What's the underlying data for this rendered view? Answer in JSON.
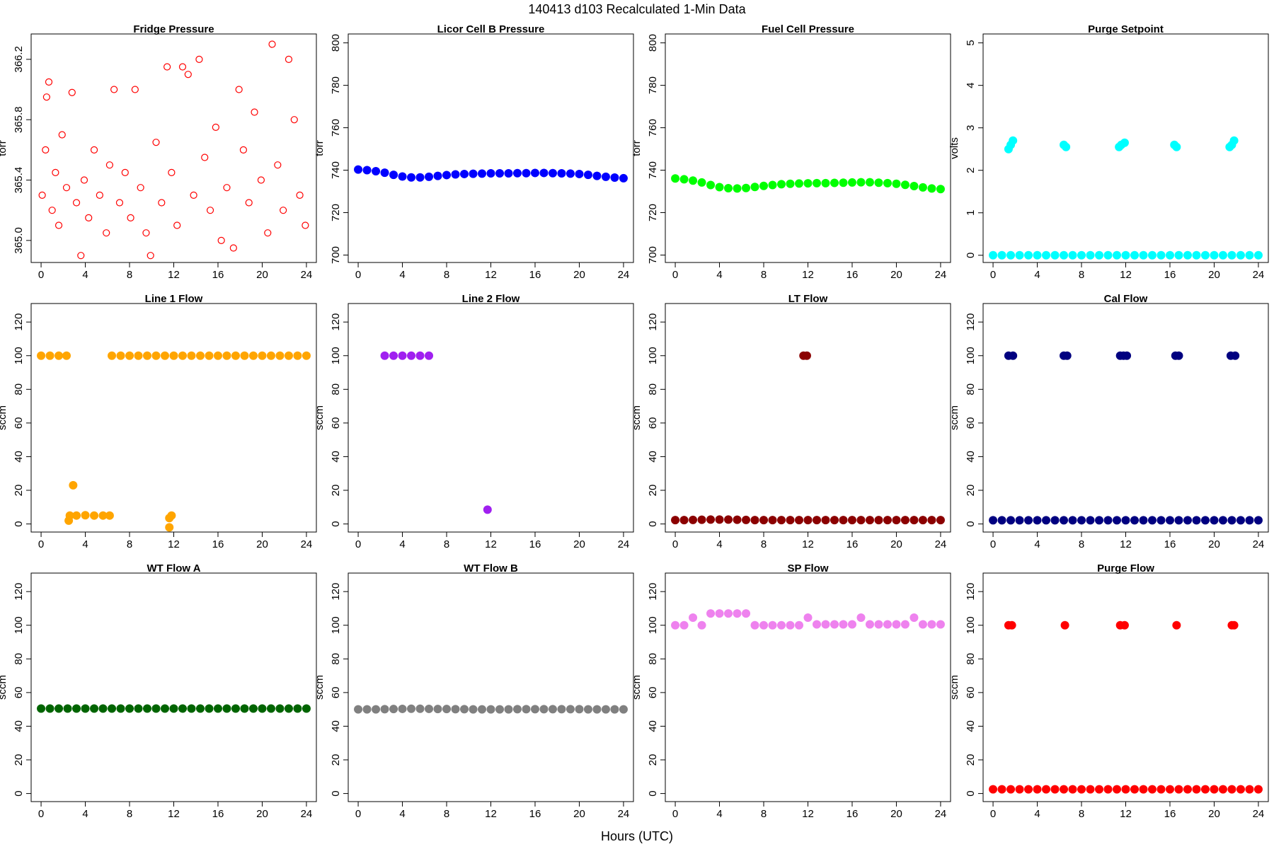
{
  "title": "140413   d103   Recalculated 1-Min Data",
  "xlabel": "Hours (UTC)",
  "chart_data": [
    {
      "type": "scatter",
      "title": "Fridge Pressure",
      "ylabel": "torr",
      "color": "#ff0000",
      "marker": "open",
      "xlim": [
        -0.9,
        24.9
      ],
      "xticks": [
        0,
        4,
        8,
        12,
        16,
        20,
        24
      ],
      "ylim": [
        364.854,
        366.368
      ],
      "yticks": [
        {
          "value": 365,
          "label": "365.0"
        },
        365.4,
        365.8,
        366.2
      ],
      "x": [
        0.1,
        0.4,
        0.5,
        0.7,
        1.0,
        1.3,
        1.6,
        1.9,
        2.3,
        2.8,
        3.2,
        3.6,
        3.9,
        4.3,
        4.8,
        5.3,
        5.9,
        6.2,
        6.6,
        7.1,
        7.6,
        8.1,
        8.5,
        9.0,
        9.5,
        9.9,
        10.4,
        10.9,
        11.4,
        11.8,
        12.3,
        12.8,
        13.3,
        13.8,
        14.3,
        14.8,
        15.3,
        15.8,
        16.3,
        16.8,
        17.4,
        17.9,
        18.3,
        18.8,
        19.3,
        19.9,
        20.5,
        20.9,
        21.4,
        21.9,
        22.4,
        22.9,
        23.4,
        23.9
      ],
      "values": [
        365.3,
        365.6,
        365.95,
        366.05,
        365.2,
        365.45,
        365.1,
        365.7,
        365.35,
        365.98,
        365.25,
        364.9,
        365.4,
        365.15,
        365.6,
        365.3,
        365.05,
        365.5,
        366.0,
        365.25,
        365.45,
        365.15,
        366.0,
        365.35,
        365.05,
        364.9,
        365.65,
        365.25,
        366.15,
        365.45,
        365.1,
        366.15,
        366.1,
        365.3,
        366.2,
        365.55,
        365.2,
        365.75,
        365.0,
        365.35,
        364.95,
        366.0,
        365.6,
        365.25,
        365.85,
        365.4,
        365.05,
        366.3,
        365.5,
        365.2,
        366.2,
        365.8,
        365.3,
        365.1
      ]
    },
    {
      "type": "scatter",
      "title": "Licor Cell B Pressure",
      "ylabel": "torr",
      "color": "#0000ff",
      "marker": "filled",
      "xlim": [
        -0.9,
        24.9
      ],
      "xticks": [
        0,
        4,
        8,
        12,
        16,
        20,
        24
      ],
      "ylim": [
        696.5,
        804.2
      ],
      "yticks": [
        700,
        720,
        740,
        760,
        780,
        800
      ],
      "x": [
        0,
        0.8,
        1.6,
        2.4,
        3.2,
        4,
        4.8,
        5.6,
        6.4,
        7.2,
        8,
        8.8,
        9.6,
        10.4,
        11.2,
        12,
        12.8,
        13.6,
        14.4,
        15.2,
        16,
        16.8,
        17.6,
        18.4,
        19.2,
        20,
        20.8,
        21.6,
        22.4,
        23.2,
        24
      ],
      "values": [
        740.3,
        740,
        739.5,
        738.8,
        737.8,
        737,
        736.6,
        736.6,
        736.9,
        737.3,
        737.7,
        738,
        738.2,
        738.3,
        738.4,
        738.5,
        738.5,
        738.5,
        738.6,
        738.6,
        738.7,
        738.7,
        738.6,
        738.5,
        738.4,
        738.2,
        737.8,
        737.3,
        736.9,
        736.5,
        736.2
      ]
    },
    {
      "type": "scatter",
      "title": "Fuel Cell Pressure",
      "ylabel": "torr",
      "color": "#00ff00",
      "marker": "filled",
      "xlim": [
        -0.9,
        24.9
      ],
      "xticks": [
        0,
        4,
        8,
        12,
        16,
        20,
        24
      ],
      "ylim": [
        696.5,
        804.2
      ],
      "yticks": [
        700,
        720,
        740,
        760,
        780,
        800
      ],
      "x": [
        0,
        0.8,
        1.6,
        2.4,
        3.2,
        4,
        4.8,
        5.6,
        6.4,
        7.2,
        8,
        8.8,
        9.6,
        10.4,
        11.2,
        12,
        12.8,
        13.6,
        14.4,
        15.2,
        16,
        16.8,
        17.6,
        18.4,
        19.2,
        20,
        20.8,
        21.6,
        22.4,
        23.2,
        24
      ],
      "values": [
        736.1,
        735.7,
        735.1,
        734.2,
        733,
        732,
        731.5,
        731.4,
        731.6,
        732.1,
        732.6,
        733,
        733.4,
        733.6,
        733.7,
        733.8,
        733.9,
        733.9,
        734,
        734.1,
        734.2,
        734.3,
        734.3,
        734.1,
        733.9,
        733.6,
        733.1,
        732.5,
        731.9,
        731.4,
        731.1
      ]
    },
    {
      "type": "scatter",
      "title": "Purge Setpoint",
      "ylabel": "volts",
      "color": "#00ffff",
      "marker": "filled",
      "xlim": [
        -0.9,
        24.9
      ],
      "xticks": [
        0,
        4,
        8,
        12,
        16,
        20,
        24
      ],
      "ylim": [
        -0.17,
        5.21
      ],
      "yticks": [
        0,
        1,
        2,
        3,
        4,
        5
      ],
      "x": [
        0,
        0.8,
        1.6,
        2.4,
        3.2,
        4,
        4.8,
        5.6,
        6.4,
        7.2,
        8,
        8.8,
        9.6,
        10.4,
        11.2,
        12,
        12.8,
        13.6,
        14.4,
        15.2,
        16,
        16.8,
        17.6,
        18.4,
        19.2,
        20,
        20.8,
        21.6,
        22.4,
        23.2,
        24,
        1.4,
        1.6,
        1.8,
        6.4,
        6.6,
        11.4,
        11.6,
        11.9,
        16.4,
        16.6,
        21.4,
        21.6,
        21.8
      ],
      "values": [
        0,
        0,
        0,
        0,
        0,
        0,
        0,
        0,
        0,
        0,
        0,
        0,
        0,
        0,
        0,
        0,
        0,
        0,
        0,
        0,
        0,
        0,
        0,
        0,
        0,
        0,
        0,
        0,
        0,
        0,
        0,
        2.5,
        2.6,
        2.7,
        2.6,
        2.55,
        2.55,
        2.6,
        2.65,
        2.6,
        2.55,
        2.55,
        2.6,
        2.7
      ]
    },
    {
      "type": "scatter",
      "title": "Line 1 Flow",
      "ylabel": "sccm",
      "color": "#ffa500",
      "marker": "filled",
      "xlim": [
        -0.9,
        24.9
      ],
      "xticks": [
        0,
        4,
        8,
        12,
        16,
        20,
        24
      ],
      "ylim": [
        -4.8,
        131
      ],
      "yticks": [
        0,
        20,
        40,
        60,
        80,
        100,
        120
      ],
      "x": [
        0,
        0.8,
        1.6,
        2.3,
        2.6,
        3.2,
        4,
        4.8,
        5.6,
        6.2,
        6.4,
        7.2,
        8,
        8.8,
        9.6,
        10.4,
        11.2,
        12,
        12.8,
        13.6,
        14.4,
        15.2,
        16,
        16.8,
        17.6,
        18.4,
        19.2,
        20,
        20.8,
        21.6,
        22.4,
        23.2,
        24,
        2.9,
        2.5,
        11.6,
        11.8,
        11.6
      ],
      "values": [
        100,
        100,
        100,
        100,
        5,
        5,
        5.2,
        5,
        5,
        5,
        100,
        100,
        100,
        100,
        100,
        100,
        100,
        100,
        100,
        100,
        100,
        100,
        100,
        100,
        100,
        100,
        100,
        100,
        100,
        100,
        100,
        100,
        100,
        23,
        2,
        3.5,
        5,
        -2
      ]
    },
    {
      "type": "scatter",
      "title": "Line 2 Flow",
      "ylabel": "sccm",
      "color": "#a020f0",
      "marker": "filled",
      "xlim": [
        -0.9,
        24.9
      ],
      "xticks": [
        0,
        4,
        8,
        12,
        16,
        20,
        24
      ],
      "ylim": [
        -4.8,
        131
      ],
      "yticks": [
        0,
        20,
        40,
        60,
        80,
        100,
        120
      ],
      "x": [
        2.4,
        3.2,
        4,
        4.8,
        5.6,
        6.4,
        11.7
      ],
      "values": [
        100,
        100,
        100,
        100,
        100,
        100,
        8.5
      ]
    },
    {
      "type": "scatter",
      "title": "LT Flow",
      "ylabel": "sccm",
      "color": "#8b0000",
      "marker": "filled",
      "xlim": [
        -0.9,
        24.9
      ],
      "xticks": [
        0,
        4,
        8,
        12,
        16,
        20,
        24
      ],
      "ylim": [
        -4.8,
        131
      ],
      "yticks": [
        0,
        20,
        40,
        60,
        80,
        100,
        120
      ],
      "x": [
        0,
        0.8,
        1.6,
        2.4,
        3.2,
        4,
        4.8,
        5.6,
        6.4,
        7.2,
        8,
        8.8,
        9.6,
        10.4,
        11.2,
        12,
        12.8,
        13.6,
        14.4,
        15.2,
        16,
        16.8,
        17.6,
        18.4,
        19.2,
        20,
        20.8,
        21.6,
        22.4,
        23.2,
        24,
        11.6,
        11.9
      ],
      "values": [
        2.3,
        2.3,
        2.4,
        2.5,
        2.6,
        2.6,
        2.6,
        2.5,
        2.4,
        2.3,
        2.3,
        2.3,
        2.3,
        2.3,
        2.3,
        2.3,
        2.3,
        2.3,
        2.3,
        2.3,
        2.3,
        2.3,
        2.3,
        2.3,
        2.3,
        2.3,
        2.3,
        2.3,
        2.3,
        2.3,
        2.3,
        100,
        100
      ]
    },
    {
      "type": "scatter",
      "title": "Cal Flow",
      "ylabel": "sccm",
      "color": "#000080",
      "marker": "filled",
      "xlim": [
        -0.9,
        24.9
      ],
      "xticks": [
        0,
        4,
        8,
        12,
        16,
        20,
        24
      ],
      "ylim": [
        -4.8,
        131
      ],
      "yticks": [
        0,
        20,
        40,
        60,
        80,
        100,
        120
      ],
      "x": [
        0,
        0.8,
        1.6,
        2.4,
        3.2,
        4,
        4.8,
        5.6,
        6.4,
        7.2,
        8,
        8.8,
        9.6,
        10.4,
        11.2,
        12,
        12.8,
        13.6,
        14.4,
        15.2,
        16,
        16.8,
        17.6,
        18.4,
        19.2,
        20,
        20.8,
        21.6,
        22.4,
        23.2,
        24,
        1.4,
        1.8,
        6.4,
        6.7,
        11.5,
        11.8,
        12.1,
        16.5,
        16.8,
        21.5,
        21.9
      ],
      "values": [
        2.2,
        2.2,
        2.2,
        2.2,
        2.2,
        2.2,
        2.2,
        2.2,
        2.2,
        2.2,
        2.2,
        2.2,
        2.2,
        2.2,
        2.2,
        2.2,
        2.2,
        2.2,
        2.2,
        2.2,
        2.2,
        2.2,
        2.2,
        2.2,
        2.2,
        2.2,
        2.2,
        2.2,
        2.2,
        2.2,
        2.2,
        100,
        100,
        100,
        100,
        100,
        100,
        100,
        100,
        100,
        100,
        100
      ]
    },
    {
      "type": "scatter",
      "title": "WT Flow A",
      "ylabel": "sccm",
      "color": "#006400",
      "marker": "filled",
      "xlim": [
        -0.9,
        24.9
      ],
      "xticks": [
        0,
        4,
        8,
        12,
        16,
        20,
        24
      ],
      "ylim": [
        -4.8,
        131
      ],
      "yticks": [
        0,
        20,
        40,
        60,
        80,
        100,
        120
      ],
      "x": [
        0,
        0.8,
        1.6,
        2.4,
        3.2,
        4,
        4.8,
        5.6,
        6.4,
        7.2,
        8,
        8.8,
        9.6,
        10.4,
        11.2,
        12,
        12.8,
        13.6,
        14.4,
        15.2,
        16,
        16.8,
        17.6,
        18.4,
        19.2,
        20,
        20.8,
        21.6,
        22.4,
        23.2,
        24
      ],
      "values": [
        50.5,
        50.5,
        50.5,
        50.5,
        50.5,
        50.5,
        50.5,
        50.5,
        50.5,
        50.5,
        50.5,
        50.5,
        50.5,
        50.5,
        50.5,
        50.5,
        50.5,
        50.5,
        50.5,
        50.5,
        50.5,
        50.5,
        50.5,
        50.5,
        50.5,
        50.5,
        50.5,
        50.5,
        50.5,
        50.5,
        50.5
      ]
    },
    {
      "type": "scatter",
      "title": "WT Flow B",
      "ylabel": "sccm",
      "color": "#808080",
      "marker": "filled",
      "xlim": [
        -0.9,
        24.9
      ],
      "xticks": [
        0,
        4,
        8,
        12,
        16,
        20,
        24
      ],
      "ylim": [
        -4.8,
        131
      ],
      "yticks": [
        0,
        20,
        40,
        60,
        80,
        100,
        120
      ],
      "x": [
        0,
        0.8,
        1.6,
        2.4,
        3.2,
        4,
        4.8,
        5.6,
        6.4,
        7.2,
        8,
        8.8,
        9.6,
        10.4,
        11.2,
        12,
        12.8,
        13.6,
        14.4,
        15.2,
        16,
        16.8,
        17.6,
        18.4,
        19.2,
        20,
        20.8,
        21.6,
        22.4,
        23.2,
        24
      ],
      "values": [
        50,
        50,
        50,
        50.1,
        50.2,
        50.3,
        50.4,
        50.4,
        50.3,
        50.2,
        50.2,
        50.1,
        50.1,
        50,
        50,
        50,
        50,
        50,
        50.1,
        50.1,
        50.1,
        50.1,
        50.1,
        50.1,
        50.1,
        50.1,
        50,
        50,
        50,
        50,
        50
      ]
    },
    {
      "type": "scatter",
      "title": "SP Flow",
      "ylabel": "sccm",
      "color": "#ee82ee",
      "marker": "filled",
      "xlim": [
        -0.9,
        24.9
      ],
      "xticks": [
        0,
        4,
        8,
        12,
        16,
        20,
        24
      ],
      "ylim": [
        -4.8,
        131
      ],
      "yticks": [
        0,
        20,
        40,
        60,
        80,
        100,
        120
      ],
      "x": [
        0,
        0.8,
        1.6,
        2.4,
        3.2,
        4,
        4.8,
        5.6,
        6.4,
        7.2,
        8,
        8.8,
        9.6,
        10.4,
        11.2,
        12,
        12.8,
        13.6,
        14.4,
        15.2,
        16,
        16.8,
        17.6,
        18.4,
        19.2,
        20,
        20.8,
        21.6,
        22.4,
        23.2,
        24
      ],
      "values": [
        100,
        100,
        104.5,
        100,
        107,
        107,
        107,
        107,
        107,
        100,
        100,
        100,
        100,
        100,
        100,
        104.5,
        100.5,
        100.5,
        100.5,
        100.5,
        100.5,
        104.5,
        100.5,
        100.5,
        100.5,
        100.5,
        100.5,
        104.5,
        100.5,
        100.5,
        100.5
      ]
    },
    {
      "type": "scatter",
      "title": "Purge Flow",
      "ylabel": "sccm",
      "color": "#ff0000",
      "marker": "filled",
      "xlim": [
        -0.9,
        24.9
      ],
      "xticks": [
        0,
        4,
        8,
        12,
        16,
        20,
        24
      ],
      "ylim": [
        -4.8,
        131
      ],
      "yticks": [
        0,
        20,
        40,
        60,
        80,
        100,
        120
      ],
      "x": [
        0,
        0.8,
        1.6,
        2.4,
        3.2,
        4,
        4.8,
        5.6,
        6.4,
        7.2,
        8,
        8.8,
        9.6,
        10.4,
        11.2,
        12,
        12.8,
        13.6,
        14.4,
        15.2,
        16,
        16.8,
        17.6,
        18.4,
        19.2,
        20,
        20.8,
        21.6,
        22.4,
        23.2,
        24,
        1.4,
        1.7,
        6.5,
        11.5,
        11.9,
        16.6,
        21.6,
        21.8
      ],
      "values": [
        2.5,
        2.5,
        2.5,
        2.5,
        2.5,
        2.5,
        2.5,
        2.5,
        2.5,
        2.5,
        2.5,
        2.5,
        2.5,
        2.5,
        2.5,
        2.5,
        2.5,
        2.5,
        2.5,
        2.5,
        2.5,
        2.5,
        2.5,
        2.5,
        2.5,
        2.5,
        2.5,
        2.5,
        2.5,
        2.5,
        2.5,
        100,
        100,
        100,
        100,
        100,
        100,
        100,
        100
      ]
    }
  ]
}
